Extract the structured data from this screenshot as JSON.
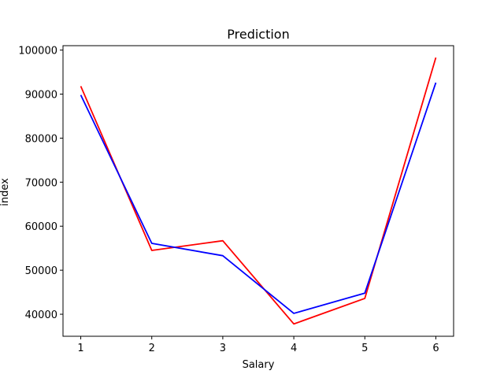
{
  "chart_data": {
    "type": "line",
    "title": "Prediction",
    "xlabel": "Salary",
    "ylabel": "index",
    "x": [
      1,
      2,
      3,
      4,
      5,
      6
    ],
    "xticks": [
      1,
      2,
      3,
      4,
      5,
      6
    ],
    "yticks": [
      40000,
      50000,
      60000,
      70000,
      80000,
      90000,
      100000
    ],
    "xlim": [
      0.75,
      6.25
    ],
    "ylim": [
      35000,
      101000
    ],
    "grid": false,
    "series": [
      {
        "color": "#ff0000",
        "values": [
          91800,
          54500,
          56700,
          37800,
          43600,
          98300
        ]
      },
      {
        "color": "#0000ff",
        "values": [
          89800,
          56100,
          53300,
          40200,
          44800,
          92600
        ]
      }
    ]
  }
}
